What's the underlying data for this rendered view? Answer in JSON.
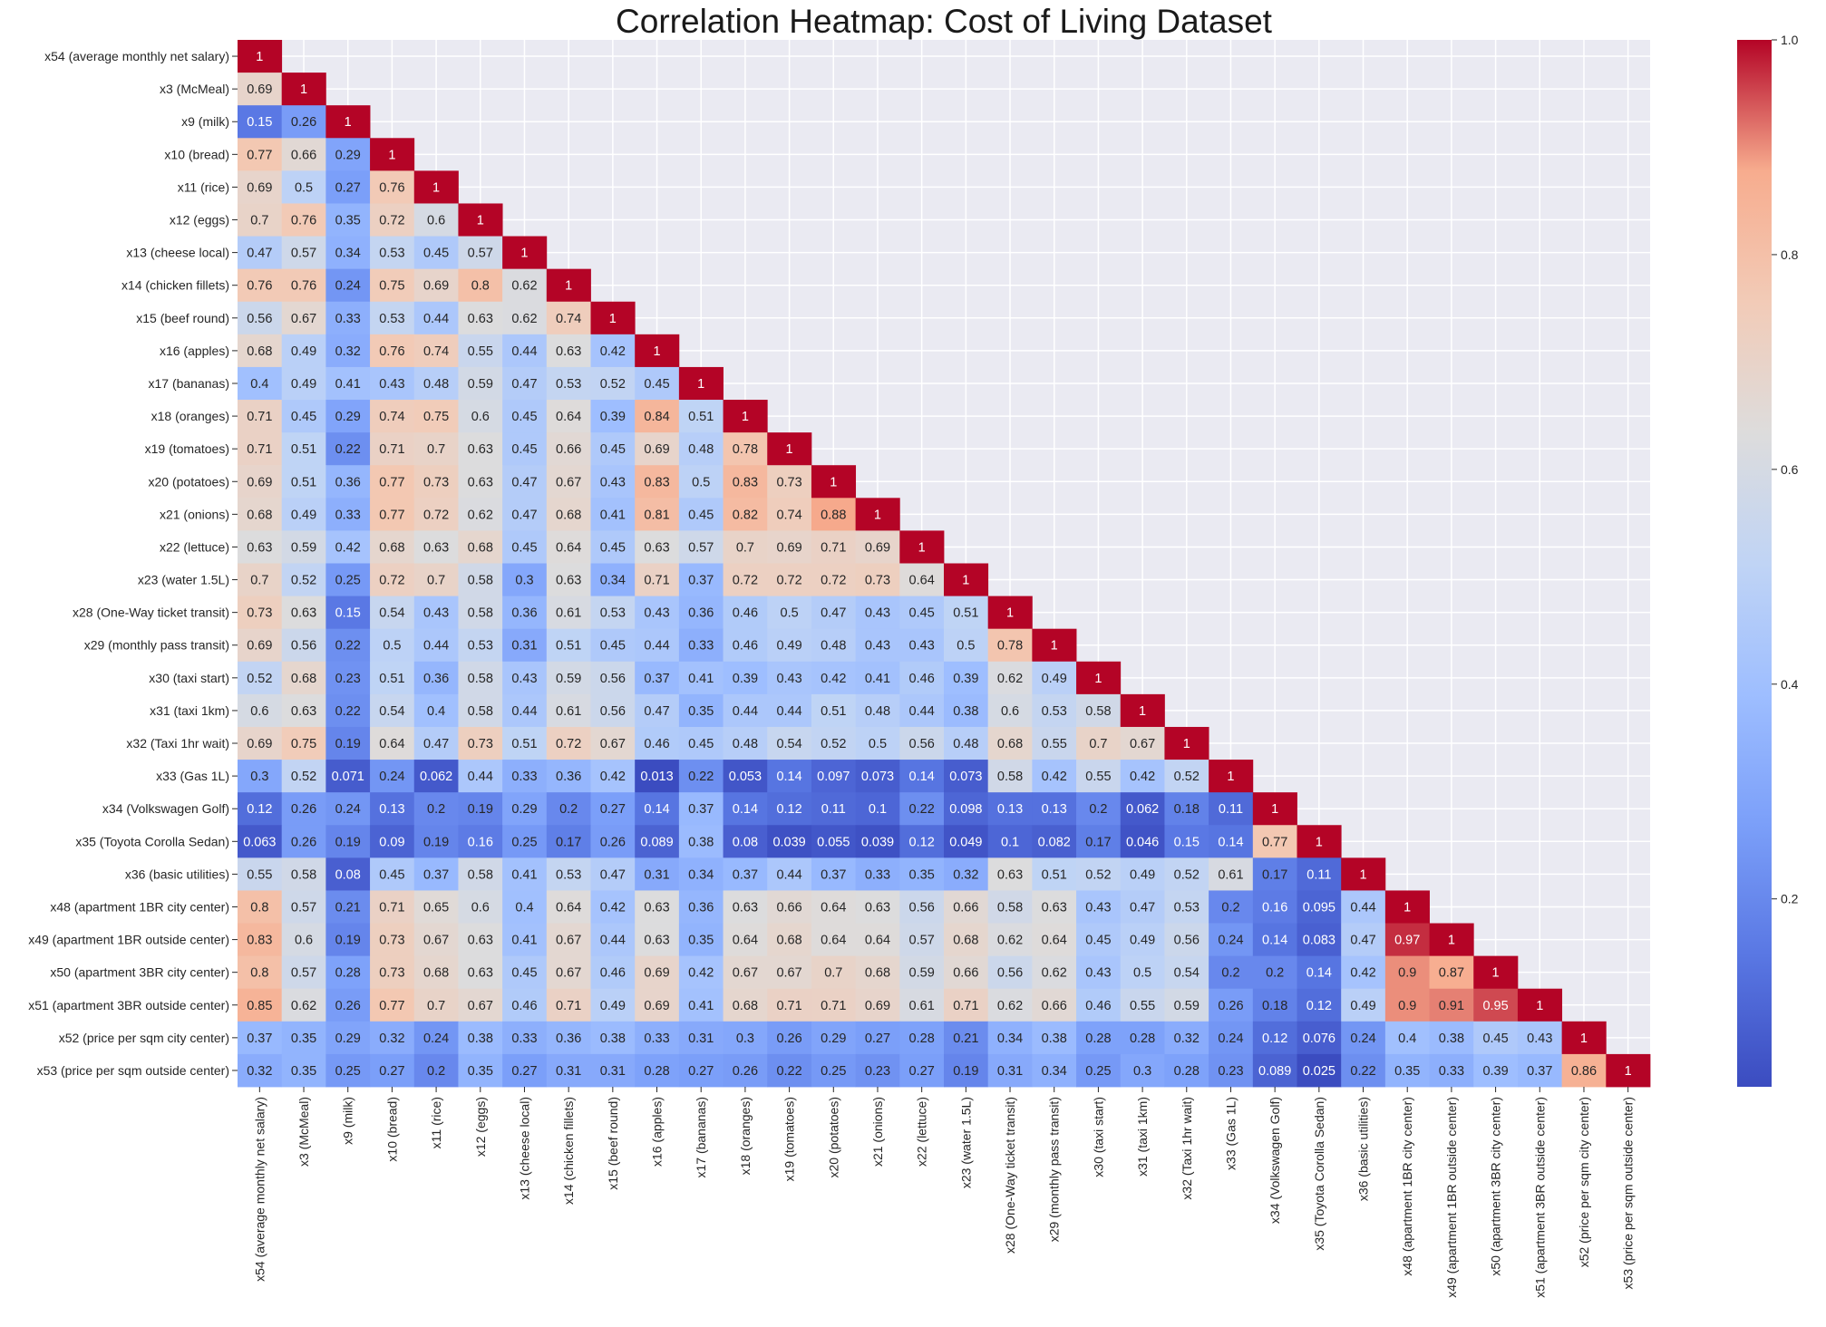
{
  "chart_data": {
    "type": "heatmap",
    "title": "Correlation Heatmap: Cost of Living Dataset",
    "colormap": "coolwarm",
    "colorbar": {
      "min": 0.025,
      "max": 1,
      "ticks": [
        0.2,
        0.4,
        0.6,
        0.8,
        1.0
      ],
      "tick_labels": [
        "0.2",
        "0.4",
        "0.6",
        "0.8",
        "1.0"
      ]
    },
    "labels": [
      "x54 (average monthly net salary)",
      "x3 (McMeal)",
      "x9 (milk)",
      "x10 (bread)",
      "x11 (rice)",
      "x12 (eggs)",
      "x13 (cheese local)",
      "x14 (chicken fillets)",
      "x15 (beef round)",
      "x16 (apples)",
      "x17 (bananas)",
      "x18 (oranges)",
      "x19 (tomatoes)",
      "x20 (potatoes)",
      "x21 (onions)",
      "x22 (lettuce)",
      "x23 (water 1.5L)",
      "x28 (One-Way ticket transit)",
      "x29 (monthly pass transit)",
      "x30 (taxi start)",
      "x31 (taxi 1km)",
      "x32 (Taxi 1hr wait)",
      "x33 (Gas 1L)",
      "x34 (Volkswagen Golf)",
      "x35 (Toyota Corolla Sedan)",
      "x36 (basic utilities)",
      "x48 (apartment 1BR city center)",
      "x49 (apartment 1BR outside center)",
      "x50 (apartment 3BR city center)",
      "x51 (apartment 3BR outside center)",
      "x52 (price per sqm city center)",
      "x53 (price per sqm outside center)"
    ],
    "values": [
      [
        1
      ],
      [
        0.69,
        1
      ],
      [
        0.15,
        0.26,
        1
      ],
      [
        0.77,
        0.66,
        0.29,
        1
      ],
      [
        0.69,
        0.5,
        0.27,
        0.76,
        1
      ],
      [
        0.7,
        0.76,
        0.35,
        0.72,
        0.6,
        1
      ],
      [
        0.47,
        0.57,
        0.34,
        0.53,
        0.45,
        0.57,
        1
      ],
      [
        0.76,
        0.76,
        0.24,
        0.75,
        0.69,
        0.8,
        0.62,
        1
      ],
      [
        0.56,
        0.67,
        0.33,
        0.53,
        0.44,
        0.63,
        0.62,
        0.74,
        1
      ],
      [
        0.68,
        0.49,
        0.32,
        0.76,
        0.74,
        0.55,
        0.44,
        0.63,
        0.42,
        1
      ],
      [
        0.4,
        0.49,
        0.41,
        0.43,
        0.48,
        0.59,
        0.47,
        0.53,
        0.52,
        0.45,
        1
      ],
      [
        0.71,
        0.45,
        0.29,
        0.74,
        0.75,
        0.6,
        0.45,
        0.64,
        0.39,
        0.84,
        0.51,
        1
      ],
      [
        0.71,
        0.51,
        0.22,
        0.71,
        0.7,
        0.63,
        0.45,
        0.66,
        0.45,
        0.69,
        0.48,
        0.78,
        1
      ],
      [
        0.69,
        0.51,
        0.36,
        0.77,
        0.73,
        0.63,
        0.47,
        0.67,
        0.43,
        0.83,
        0.5,
        0.83,
        0.73,
        1
      ],
      [
        0.68,
        0.49,
        0.33,
        0.77,
        0.72,
        0.62,
        0.47,
        0.68,
        0.41,
        0.81,
        0.45,
        0.82,
        0.74,
        0.88,
        1
      ],
      [
        0.63,
        0.59,
        0.42,
        0.68,
        0.63,
        0.68,
        0.45,
        0.64,
        0.45,
        0.63,
        0.57,
        0.7,
        0.69,
        0.71,
        0.69,
        1
      ],
      [
        0.7,
        0.52,
        0.25,
        0.72,
        0.7,
        0.58,
        0.3,
        0.63,
        0.34,
        0.71,
        0.37,
        0.72,
        0.72,
        0.72,
        0.73,
        0.64,
        1
      ],
      [
        0.73,
        0.63,
        0.15,
        0.54,
        0.43,
        0.58,
        0.36,
        0.61,
        0.53,
        0.43,
        0.36,
        0.46,
        0.5,
        0.47,
        0.43,
        0.45,
        0.51,
        1
      ],
      [
        0.69,
        0.56,
        0.22,
        0.5,
        0.44,
        0.53,
        0.31,
        0.51,
        0.45,
        0.44,
        0.33,
        0.46,
        0.49,
        0.48,
        0.43,
        0.43,
        0.5,
        0.78,
        1
      ],
      [
        0.52,
        0.68,
        0.23,
        0.51,
        0.36,
        0.58,
        0.43,
        0.59,
        0.56,
        0.37,
        0.41,
        0.39,
        0.43,
        0.42,
        0.41,
        0.46,
        0.39,
        0.62,
        0.49,
        1
      ],
      [
        0.6,
        0.63,
        0.22,
        0.54,
        0.4,
        0.58,
        0.44,
        0.61,
        0.56,
        0.47,
        0.35,
        0.44,
        0.44,
        0.51,
        0.48,
        0.44,
        0.38,
        0.6,
        0.53,
        0.58,
        1
      ],
      [
        0.69,
        0.75,
        0.19,
        0.64,
        0.47,
        0.73,
        0.51,
        0.72,
        0.67,
        0.46,
        0.45,
        0.48,
        0.54,
        0.52,
        0.5,
        0.56,
        0.48,
        0.68,
        0.55,
        0.7,
        0.67,
        1
      ],
      [
        0.3,
        0.52,
        0.071,
        0.24,
        0.062,
        0.44,
        0.33,
        0.36,
        0.42,
        0.013,
        0.22,
        0.053,
        0.14,
        0.097,
        0.073,
        0.14,
        0.073,
        0.58,
        0.42,
        0.55,
        0.42,
        0.52,
        1
      ],
      [
        0.12,
        0.26,
        0.24,
        0.13,
        0.2,
        0.19,
        0.29,
        0.2,
        0.27,
        0.14,
        0.37,
        0.14,
        0.12,
        0.11,
        0.1,
        0.22,
        0.098,
        0.13,
        0.13,
        0.2,
        0.062,
        0.18,
        0.11,
        1
      ],
      [
        0.063,
        0.26,
        0.19,
        0.09,
        0.19,
        0.16,
        0.25,
        0.17,
        0.26,
        0.089,
        0.38,
        0.08,
        0.039,
        0.055,
        0.039,
        0.12,
        0.049,
        0.1,
        0.082,
        0.17,
        0.046,
        0.15,
        0.14,
        0.77,
        1
      ],
      [
        0.55,
        0.58,
        0.08,
        0.45,
        0.37,
        0.58,
        0.41,
        0.53,
        0.47,
        0.31,
        0.34,
        0.37,
        0.44,
        0.37,
        0.33,
        0.35,
        0.32,
        0.63,
        0.51,
        0.52,
        0.49,
        0.52,
        0.61,
        0.17,
        0.11,
        1
      ],
      [
        0.8,
        0.57,
        0.21,
        0.71,
        0.65,
        0.6,
        0.4,
        0.64,
        0.42,
        0.63,
        0.36,
        0.63,
        0.66,
        0.64,
        0.63,
        0.56,
        0.66,
        0.58,
        0.63,
        0.43,
        0.47,
        0.53,
        0.2,
        0.16,
        0.095,
        0.44,
        1
      ],
      [
        0.83,
        0.6,
        0.19,
        0.73,
        0.67,
        0.63,
        0.41,
        0.67,
        0.44,
        0.63,
        0.35,
        0.64,
        0.68,
        0.64,
        0.64,
        0.57,
        0.68,
        0.62,
        0.64,
        0.45,
        0.49,
        0.56,
        0.24,
        0.14,
        0.083,
        0.47,
        0.97,
        1
      ],
      [
        0.8,
        0.57,
        0.28,
        0.73,
        0.68,
        0.63,
        0.45,
        0.67,
        0.46,
        0.69,
        0.42,
        0.67,
        0.67,
        0.7,
        0.68,
        0.59,
        0.66,
        0.56,
        0.62,
        0.43,
        0.5,
        0.54,
        0.2,
        0.2,
        0.14,
        0.42,
        0.9,
        0.87,
        1
      ],
      [
        0.85,
        0.62,
        0.26,
        0.77,
        0.7,
        0.67,
        0.46,
        0.71,
        0.49,
        0.69,
        0.41,
        0.68,
        0.71,
        0.71,
        0.69,
        0.61,
        0.71,
        0.62,
        0.66,
        0.46,
        0.55,
        0.59,
        0.26,
        0.18,
        0.12,
        0.49,
        0.9,
        0.91,
        0.95,
        1
      ],
      [
        0.37,
        0.35,
        0.29,
        0.32,
        0.24,
        0.38,
        0.33,
        0.36,
        0.38,
        0.33,
        0.31,
        0.3,
        0.26,
        0.29,
        0.27,
        0.28,
        0.21,
        0.34,
        0.38,
        0.28,
        0.28,
        0.32,
        0.24,
        0.12,
        0.076,
        0.24,
        0.4,
        0.38,
        0.45,
        0.43,
        1
      ],
      [
        0.32,
        0.35,
        0.25,
        0.27,
        0.2,
        0.35,
        0.27,
        0.31,
        0.31,
        0.28,
        0.27,
        0.26,
        0.22,
        0.25,
        0.23,
        0.27,
        0.19,
        0.31,
        0.34,
        0.25,
        0.3,
        0.28,
        0.23,
        0.089,
        0.025,
        0.22,
        0.35,
        0.33,
        0.39,
        0.37,
        0.86,
        1
      ]
    ],
    "mask": "upper-triangle",
    "annotations": true,
    "background": "#eaeaf2",
    "grid": true
  }
}
